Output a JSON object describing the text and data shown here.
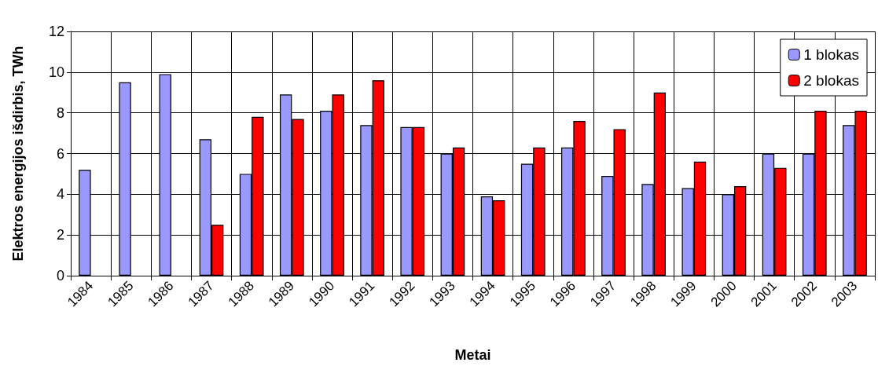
{
  "chart_data": {
    "type": "bar",
    "xlabel": "Metai",
    "ylabel": "Elektros energijos išdirbis, TWh",
    "categories": [
      "1984",
      "1985",
      "1986",
      "1987",
      "1988",
      "1989",
      "1990",
      "1991",
      "1992",
      "1993",
      "1994",
      "1995",
      "1996",
      "1997",
      "1998",
      "1999",
      "2000",
      "2001",
      "2002",
      "2003"
    ],
    "series": [
      {
        "name": "1 blokas",
        "color": "#9999ff",
        "values": [
          5.2,
          9.5,
          9.9,
          6.7,
          5.0,
          8.9,
          8.1,
          7.4,
          7.3,
          6.0,
          3.9,
          5.5,
          6.3,
          4.9,
          4.5,
          4.3,
          4.0,
          6.0,
          6.0,
          7.4
        ]
      },
      {
        "name": "2 blokas",
        "color": "#ff0000",
        "values": [
          null,
          null,
          null,
          2.5,
          7.8,
          7.7,
          8.9,
          9.6,
          7.3,
          6.3,
          3.7,
          6.3,
          7.6,
          7.2,
          9.0,
          5.6,
          4.4,
          5.3,
          8.1,
          8.1
        ]
      }
    ],
    "ylim": [
      0,
      12
    ],
    "yticks": [
      0,
      2,
      4,
      6,
      8,
      10,
      12
    ],
    "grid": true,
    "legend": "top right"
  }
}
